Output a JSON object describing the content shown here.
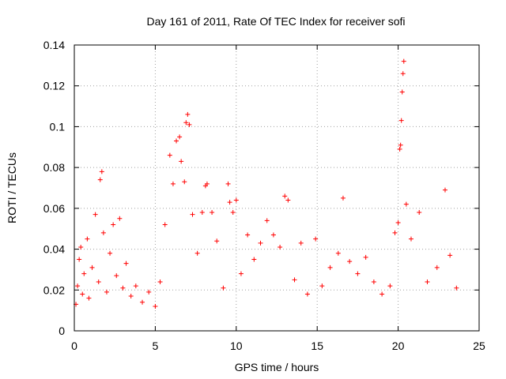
{
  "chart_data": {
    "type": "scatter",
    "title": "Day 161 of 2011, Rate Of TEC Index for receiver sofi",
    "xlabel": "GPS time / hours",
    "ylabel": "ROTI / TECUs",
    "xlim": [
      0,
      25
    ],
    "ylim": [
      0,
      0.14
    ],
    "xticks": [
      0,
      5,
      10,
      15,
      20,
      25
    ],
    "xtick_labels": [
      "0",
      "5",
      "10",
      "15",
      "20",
      "25"
    ],
    "yticks": [
      0,
      0.02,
      0.04,
      0.06,
      0.08,
      0.1,
      0.12,
      0.14
    ],
    "ytick_labels": [
      "0",
      "0.02",
      "0.04",
      "0.06",
      "0.08",
      "0.1",
      "0.12",
      "0.14"
    ],
    "grid": true,
    "marker": "+",
    "color": "#ff0000",
    "series": [
      {
        "name": "ROTI",
        "points": [
          [
            0.1,
            0.013
          ],
          [
            0.2,
            0.022
          ],
          [
            0.3,
            0.035
          ],
          [
            0.4,
            0.041
          ],
          [
            0.5,
            0.018
          ],
          [
            0.6,
            0.028
          ],
          [
            0.8,
            0.045
          ],
          [
            0.9,
            0.016
          ],
          [
            1.1,
            0.031
          ],
          [
            1.3,
            0.057
          ],
          [
            1.5,
            0.024
          ],
          [
            1.6,
            0.074
          ],
          [
            1.7,
            0.078
          ],
          [
            1.8,
            0.048
          ],
          [
            2.0,
            0.019
          ],
          [
            2.2,
            0.038
          ],
          [
            2.4,
            0.052
          ],
          [
            2.6,
            0.027
          ],
          [
            2.8,
            0.055
          ],
          [
            3.0,
            0.021
          ],
          [
            3.2,
            0.033
          ],
          [
            3.5,
            0.017
          ],
          [
            3.8,
            0.022
          ],
          [
            4.2,
            0.014
          ],
          [
            4.6,
            0.019
          ],
          [
            5.0,
            0.012
          ],
          [
            5.3,
            0.024
          ],
          [
            5.6,
            0.052
          ],
          [
            5.9,
            0.086
          ],
          [
            6.1,
            0.072
          ],
          [
            6.3,
            0.093
          ],
          [
            6.5,
            0.095
          ],
          [
            6.6,
            0.083
          ],
          [
            6.8,
            0.073
          ],
          [
            6.9,
            0.102
          ],
          [
            7.0,
            0.106
          ],
          [
            7.1,
            0.101
          ],
          [
            7.3,
            0.057
          ],
          [
            7.6,
            0.038
          ],
          [
            7.9,
            0.058
          ],
          [
            8.1,
            0.071
          ],
          [
            8.2,
            0.072
          ],
          [
            8.5,
            0.058
          ],
          [
            8.8,
            0.044
          ],
          [
            9.2,
            0.021
          ],
          [
            9.5,
            0.072
          ],
          [
            9.6,
            0.063
          ],
          [
            9.8,
            0.058
          ],
          [
            10.0,
            0.064
          ],
          [
            10.3,
            0.028
          ],
          [
            10.7,
            0.047
          ],
          [
            11.1,
            0.035
          ],
          [
            11.5,
            0.043
          ],
          [
            11.9,
            0.054
          ],
          [
            12.3,
            0.047
          ],
          [
            12.7,
            0.041
          ],
          [
            13.0,
            0.066
          ],
          [
            13.2,
            0.064
          ],
          [
            13.6,
            0.025
          ],
          [
            14.0,
            0.043
          ],
          [
            14.4,
            0.018
          ],
          [
            14.9,
            0.045
          ],
          [
            15.3,
            0.022
          ],
          [
            15.8,
            0.031
          ],
          [
            16.3,
            0.038
          ],
          [
            16.6,
            0.065
          ],
          [
            17.0,
            0.034
          ],
          [
            17.5,
            0.028
          ],
          [
            18.0,
            0.036
          ],
          [
            18.5,
            0.024
          ],
          [
            19.0,
            0.018
          ],
          [
            19.5,
            0.022
          ],
          [
            19.8,
            0.048
          ],
          [
            20.0,
            0.053
          ],
          [
            20.1,
            0.089
          ],
          [
            20.15,
            0.091
          ],
          [
            20.2,
            0.103
          ],
          [
            20.25,
            0.117
          ],
          [
            20.3,
            0.126
          ],
          [
            20.35,
            0.132
          ],
          [
            20.5,
            0.062
          ],
          [
            20.8,
            0.045
          ],
          [
            21.3,
            0.058
          ],
          [
            21.8,
            0.024
          ],
          [
            22.4,
            0.031
          ],
          [
            22.9,
            0.069
          ],
          [
            23.2,
            0.037
          ],
          [
            23.6,
            0.021
          ]
        ]
      }
    ]
  }
}
